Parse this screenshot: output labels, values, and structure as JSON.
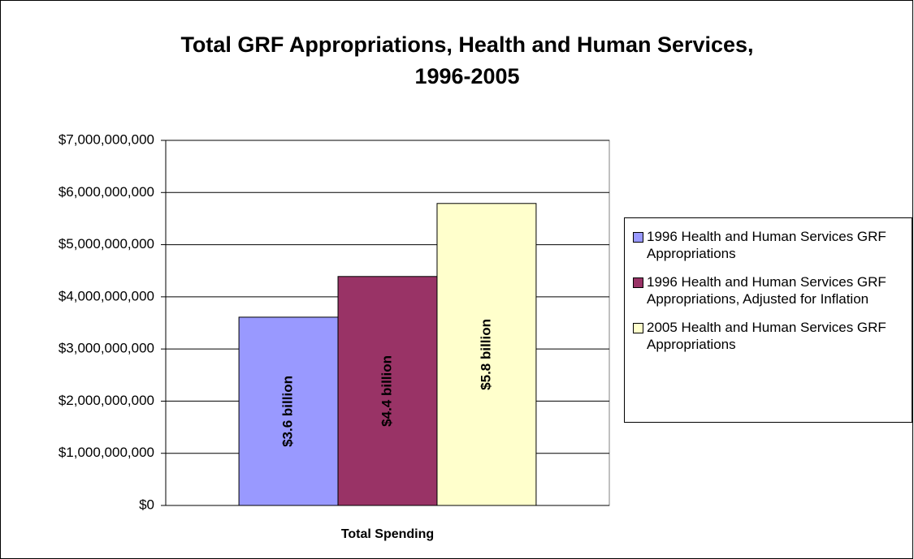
{
  "chart_data": {
    "type": "bar",
    "title": [
      "Total GRF Appropriations, Health and Human Services,",
      "1996-2005"
    ],
    "categories": [
      "Total Spending"
    ],
    "series": [
      {
        "name": "1996 Health and Human Services GRF Appropriations",
        "color": "#9999ff",
        "values": [
          3610000000
        ],
        "value_labels": [
          "$3.6 billion"
        ]
      },
      {
        "name": "1996 Health and Human Services GRF Appropriations, Adjusted for Inflation",
        "color": "#993366",
        "values": [
          4390000000
        ],
        "value_labels": [
          "$4.4 billion"
        ]
      },
      {
        "name": "2005 Health and Human Services GRF Appropriations",
        "color": "#ffffcc",
        "values": [
          5790000000
        ],
        "value_labels": [
          "$5.8 billion"
        ]
      }
    ],
    "ylim": [
      0,
      7000000000
    ],
    "yticks": [
      {
        "value": 0,
        "label": "$0"
      },
      {
        "value": 1000000000,
        "label": "$1,000,000,000"
      },
      {
        "value": 2000000000,
        "label": "$2,000,000,000"
      },
      {
        "value": 3000000000,
        "label": "$3,000,000,000"
      },
      {
        "value": 4000000000,
        "label": "$4,000,000,000"
      },
      {
        "value": 5000000000,
        "label": "$5,000,000,000"
      },
      {
        "value": 6000000000,
        "label": "$6,000,000,000"
      },
      {
        "value": 7000000000,
        "label": "$7,000,000,000"
      }
    ],
    "grid": true,
    "legend": "right"
  }
}
